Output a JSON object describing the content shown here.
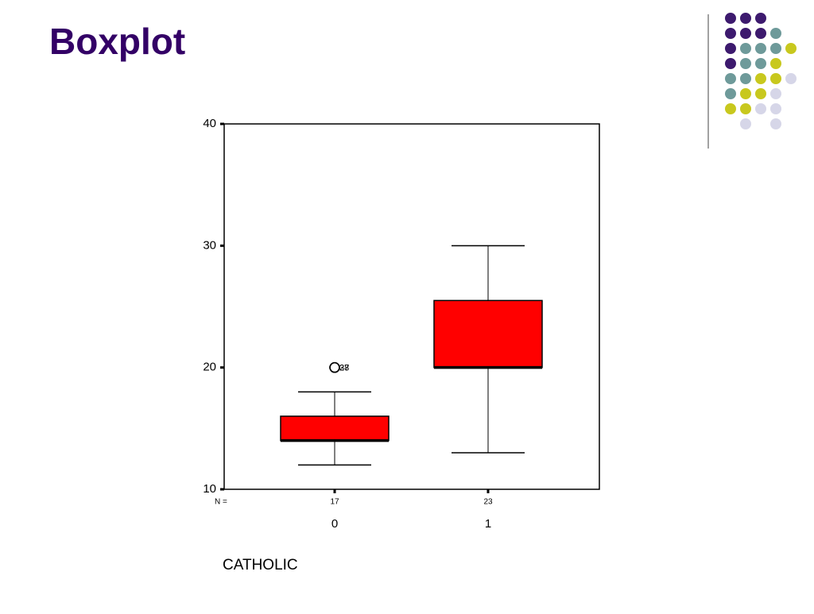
{
  "chart_data": {
    "type": "box",
    "title": "Boxplot",
    "x_label": "CATHOLIC",
    "categories": [
      "0",
      "1"
    ],
    "n_label": "N =",
    "n": [
      17,
      23
    ],
    "boxes": [
      {
        "min": 12,
        "q1": 14,
        "median": 14,
        "q3": 16,
        "max": 18,
        "outliers": [
          {
            "value": 20,
            "label": "28"
          },
          {
            "value": 20,
            "label": "37"
          }
        ]
      },
      {
        "min": 13,
        "q1": 20,
        "median": 20,
        "q3": 25.5,
        "max": 30,
        "outliers": []
      }
    ],
    "color": "#ff0000",
    "ylim": [
      10,
      40
    ],
    "yticks": [
      10,
      20,
      30,
      40
    ]
  }
}
